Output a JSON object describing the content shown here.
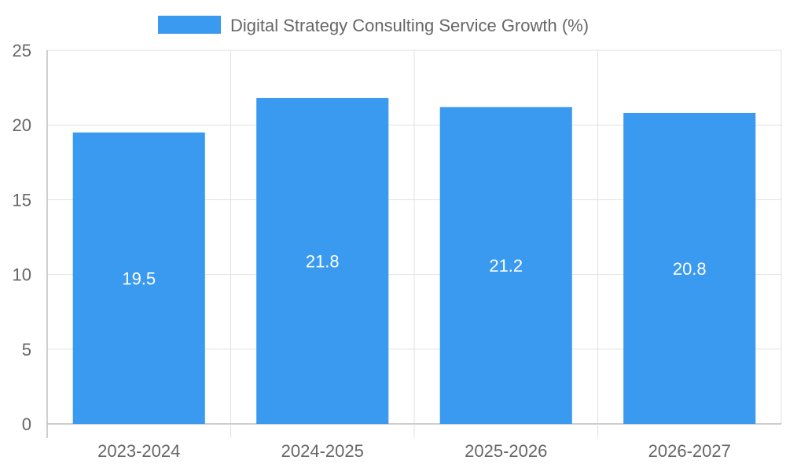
{
  "chart_data": {
    "type": "bar",
    "title": "",
    "xlabel": "",
    "ylabel": "",
    "categories": [
      "2023-2024",
      "2024-2025",
      "2025-2026",
      "2026-2027"
    ],
    "series": [
      {
        "name": "Digital Strategy Consulting Service Growth (%)",
        "values": [
          19.5,
          21.8,
          21.2,
          20.8
        ],
        "data_labels": [
          "19.5",
          "21.8",
          "21.2",
          "20.8"
        ]
      }
    ],
    "ylim": [
      0,
      25
    ],
    "y_ticks": [
      "0",
      "5",
      "10",
      "15",
      "20",
      "25"
    ],
    "grid": true,
    "legend_position": "top-center"
  },
  "colors": {
    "bar": "#3a9af0",
    "grid": "#e0e0e0",
    "axis": "#bdbdbd",
    "tick_text": "#666666",
    "label_text": "#ffffff",
    "legend_text": "#666666"
  }
}
